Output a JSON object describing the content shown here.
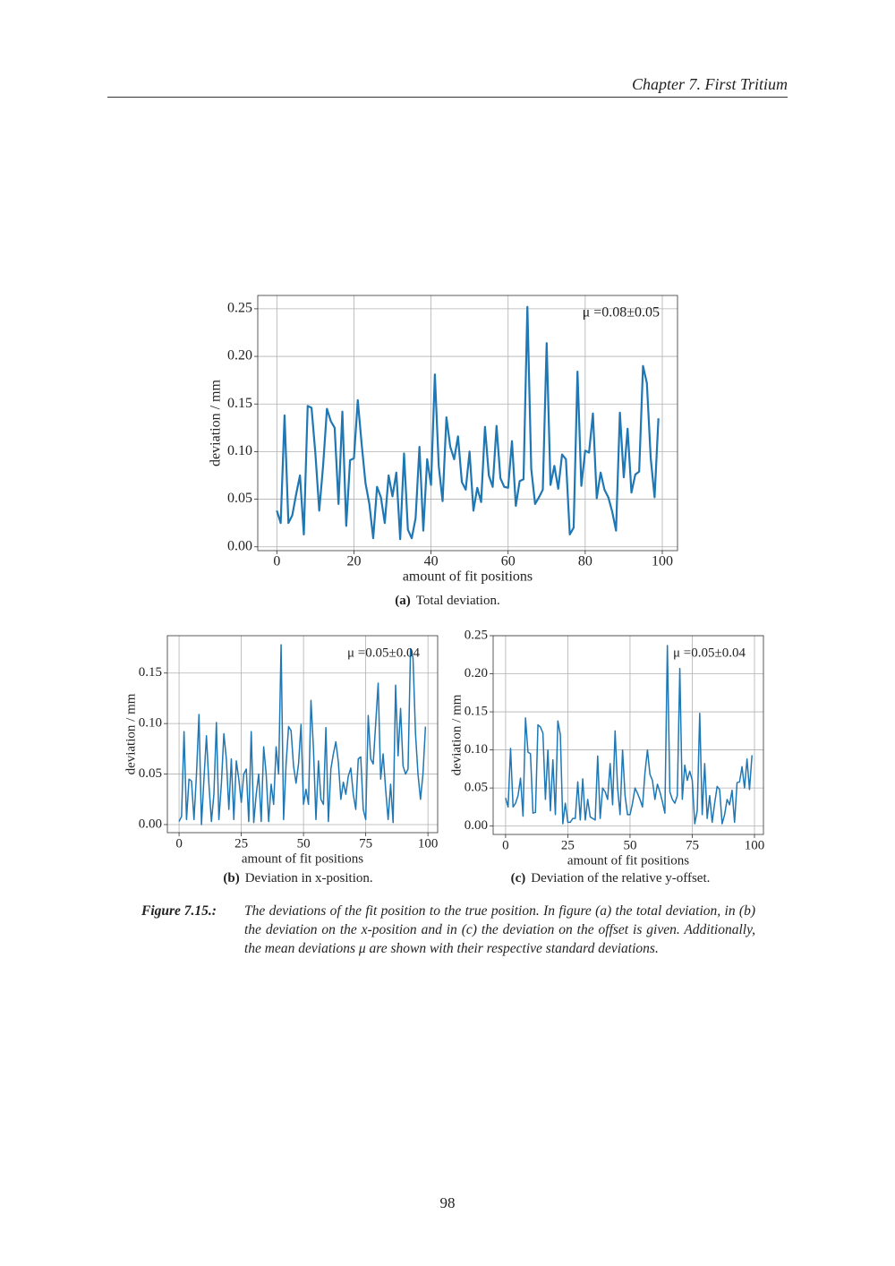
{
  "header": "Chapter 7. First Tritium",
  "chart_data": [
    {
      "type": "line",
      "xlabel": "amount of fit positions",
      "ylabel": "deviation / mm",
      "annotation": "μ =0.08±0.05",
      "color": "#1f77b4",
      "grid": true,
      "xlim": [
        -4.95,
        103.95
      ],
      "ylim": [
        -0.004,
        0.264
      ],
      "xticks": [
        0,
        20,
        40,
        60,
        80,
        100
      ],
      "yticks": [
        {
          "value": 0,
          "label": "0.00"
        },
        {
          "value": 0.05,
          "label": "0.05"
        },
        {
          "value": 0.1,
          "label": "0.10"
        },
        {
          "value": 0.15,
          "label": "0.15"
        },
        {
          "value": 0.2,
          "label": "0.20"
        },
        {
          "value": 0.25,
          "label": "0.25"
        }
      ],
      "x": [
        0,
        1,
        2,
        3,
        4,
        5,
        6,
        7,
        8,
        9,
        10,
        11,
        12,
        13,
        14,
        15,
        16,
        17,
        18,
        19,
        20,
        21,
        22,
        23,
        24,
        25,
        26,
        27,
        28,
        29,
        30,
        31,
        32,
        33,
        34,
        35,
        36,
        37,
        38,
        39,
        40,
        41,
        42,
        43,
        44,
        45,
        46,
        47,
        48,
        49,
        50,
        51,
        52,
        53,
        54,
        55,
        56,
        57,
        58,
        59,
        60,
        61,
        62,
        63,
        64,
        65,
        66,
        67,
        68,
        69,
        70,
        71,
        72,
        73,
        74,
        75,
        76,
        77,
        78,
        79,
        80,
        81,
        82,
        83,
        84,
        85,
        86,
        87,
        88,
        89,
        90,
        91,
        92,
        93,
        94,
        95,
        96,
        97,
        98,
        99
      ],
      "values": [
        0.038,
        0.025,
        0.138,
        0.025,
        0.033,
        0.055,
        0.075,
        0.013,
        0.148,
        0.146,
        0.098,
        0.038,
        0.085,
        0.145,
        0.132,
        0.125,
        0.045,
        0.142,
        0.022,
        0.091,
        0.093,
        0.154,
        0.108,
        0.067,
        0.045,
        0.009,
        0.063,
        0.052,
        0.025,
        0.075,
        0.053,
        0.078,
        0.008,
        0.098,
        0.018,
        0.009,
        0.03,
        0.105,
        0.017,
        0.092,
        0.065,
        0.181,
        0.085,
        0.048,
        0.136,
        0.105,
        0.092,
        0.116,
        0.068,
        0.06,
        0.1,
        0.038,
        0.062,
        0.047,
        0.126,
        0.075,
        0.063,
        0.127,
        0.072,
        0.063,
        0.062,
        0.111,
        0.043,
        0.069,
        0.071,
        0.252,
        0.082,
        0.045,
        0.052,
        0.06,
        0.214,
        0.065,
        0.085,
        0.061,
        0.097,
        0.092,
        0.013,
        0.02,
        0.184,
        0.064,
        0.101,
        0.099,
        0.14,
        0.051,
        0.078,
        0.06,
        0.052,
        0.037,
        0.017,
        0.141,
        0.073,
        0.124,
        0.057,
        0.076,
        0.079,
        0.19,
        0.172,
        0.093,
        0.052,
        0.135
      ]
    },
    {
      "type": "line",
      "xlabel": "amount of fit positions",
      "ylabel": "deviation / mm",
      "annotation": "μ =0.05±0.04",
      "color": "#1f77b4",
      "grid": true,
      "xlim": [
        -4.7,
        103.9
      ],
      "ylim": [
        -0.008,
        0.187
      ],
      "xticks": [
        0,
        25,
        50,
        75,
        100
      ],
      "yticks": [
        {
          "value": 0,
          "label": "0.00"
        },
        {
          "value": 0.05,
          "label": "0.05"
        },
        {
          "value": 0.1,
          "label": "0.10"
        },
        {
          "value": 0.15,
          "label": "0.15"
        }
      ],
      "x": [
        0,
        1,
        2,
        3,
        4,
        5,
        6,
        7,
        8,
        9,
        10,
        11,
        12,
        13,
        14,
        15,
        16,
        17,
        18,
        19,
        20,
        21,
        22,
        23,
        24,
        25,
        26,
        27,
        28,
        29,
        30,
        31,
        32,
        33,
        34,
        35,
        36,
        37,
        38,
        39,
        40,
        41,
        42,
        43,
        44,
        45,
        46,
        47,
        48,
        49,
        50,
        51,
        52,
        53,
        54,
        55,
        56,
        57,
        58,
        59,
        60,
        61,
        62,
        63,
        64,
        65,
        66,
        67,
        68,
        69,
        70,
        71,
        72,
        73,
        74,
        75,
        76,
        77,
        78,
        79,
        80,
        81,
        82,
        83,
        84,
        85,
        86,
        87,
        88,
        89,
        90,
        91,
        92,
        93,
        94,
        95,
        96,
        97,
        98,
        99
      ],
      "values": [
        0.003,
        0.008,
        0.092,
        0.005,
        0.045,
        0.043,
        0.005,
        0.05,
        0.109,
        0.0,
        0.045,
        0.088,
        0.04,
        0.003,
        0.03,
        0.101,
        0.005,
        0.04,
        0.09,
        0.065,
        0.015,
        0.065,
        0.005,
        0.063,
        0.045,
        0.022,
        0.05,
        0.055,
        0.003,
        0.092,
        0.002,
        0.03,
        0.05,
        0.003,
        0.077,
        0.05,
        0.003,
        0.04,
        0.02,
        0.077,
        0.05,
        0.178,
        0.005,
        0.06,
        0.097,
        0.093,
        0.058,
        0.041,
        0.06,
        0.099,
        0.02,
        0.035,
        0.02,
        0.123,
        0.075,
        0.005,
        0.063,
        0.025,
        0.02,
        0.096,
        0.003,
        0.055,
        0.07,
        0.082,
        0.062,
        0.025,
        0.042,
        0.03,
        0.048,
        0.056,
        0.03,
        0.015,
        0.065,
        0.067,
        0.015,
        0.005,
        0.108,
        0.065,
        0.06,
        0.1,
        0.14,
        0.045,
        0.07,
        0.035,
        0.005,
        0.04,
        0.002,
        0.138,
        0.068,
        0.115,
        0.058,
        0.05,
        0.055,
        0.174,
        0.165,
        0.09,
        0.05,
        0.025,
        0.05,
        0.097
      ]
    },
    {
      "type": "line",
      "xlabel": "amount of fit positions",
      "ylabel": "deviation / mm",
      "annotation": "μ =0.05±0.04",
      "color": "#1f77b4",
      "grid": true,
      "xlim": [
        -5.0,
        103.6
      ],
      "ylim": [
        -0.011,
        0.25
      ],
      "xticks": [
        0,
        25,
        50,
        75,
        100
      ],
      "yticks": [
        {
          "value": 0,
          "label": "0.00"
        },
        {
          "value": 0.05,
          "label": "0.05"
        },
        {
          "value": 0.1,
          "label": "0.10"
        },
        {
          "value": 0.15,
          "label": "0.15"
        },
        {
          "value": 0.2,
          "label": "0.20"
        },
        {
          "value": 0.25,
          "label": "0.25"
        }
      ],
      "x": [
        0,
        1,
        2,
        3,
        4,
        5,
        6,
        7,
        8,
        9,
        10,
        11,
        12,
        13,
        14,
        15,
        16,
        17,
        18,
        19,
        20,
        21,
        22,
        23,
        24,
        25,
        26,
        27,
        28,
        29,
        30,
        31,
        32,
        33,
        34,
        35,
        36,
        37,
        38,
        39,
        40,
        41,
        42,
        43,
        44,
        45,
        46,
        47,
        48,
        49,
        50,
        51,
        52,
        53,
        54,
        55,
        56,
        57,
        58,
        59,
        60,
        61,
        62,
        63,
        64,
        65,
        66,
        67,
        68,
        69,
        70,
        71,
        72,
        73,
        74,
        75,
        76,
        77,
        78,
        79,
        80,
        81,
        82,
        83,
        84,
        85,
        86,
        87,
        88,
        89,
        90,
        91,
        92,
        93,
        94,
        95,
        96,
        97,
        98,
        99
      ],
      "values": [
        0.037,
        0.025,
        0.102,
        0.025,
        0.03,
        0.04,
        0.063,
        0.013,
        0.142,
        0.097,
        0.095,
        0.017,
        0.018,
        0.133,
        0.13,
        0.122,
        0.035,
        0.1,
        0.02,
        0.087,
        0.015,
        0.138,
        0.12,
        0.003,
        0.03,
        0.005,
        0.005,
        0.01,
        0.01,
        0.058,
        0.008,
        0.062,
        0.008,
        0.035,
        0.012,
        0.01,
        0.008,
        0.092,
        0.01,
        0.05,
        0.045,
        0.035,
        0.082,
        0.028,
        0.125,
        0.05,
        0.015,
        0.1,
        0.04,
        0.015,
        0.015,
        0.03,
        0.05,
        0.043,
        0.035,
        0.025,
        0.07,
        0.1,
        0.068,
        0.06,
        0.035,
        0.055,
        0.045,
        0.032,
        0.017,
        0.237,
        0.045,
        0.035,
        0.03,
        0.04,
        0.207,
        0.035,
        0.08,
        0.06,
        0.072,
        0.06,
        0.003,
        0.02,
        0.148,
        0.015,
        0.082,
        0.01,
        0.04,
        0.005,
        0.03,
        0.052,
        0.048,
        0.003,
        0.015,
        0.035,
        0.028,
        0.047,
        0.005,
        0.057,
        0.058,
        0.078,
        0.05,
        0.088,
        0.048,
        0.093
      ]
    }
  ],
  "subcaptions": [
    {
      "label": "(a)",
      "text": "Total deviation."
    },
    {
      "label": "(b)",
      "text": "Deviation in x-position."
    },
    {
      "label": "(c)",
      "text": "Deviation of the relative y-offset."
    }
  ],
  "figure_caption": {
    "label": "Figure 7.15.:",
    "text": "The deviations of the fit position to the true position. In figure (a) the total deviation, in (b) the deviation on the x-position and in (c) the deviation on the offset is given. Additionally, the mean deviations μ are shown with their respective standard deviations."
  },
  "page_number": "98"
}
